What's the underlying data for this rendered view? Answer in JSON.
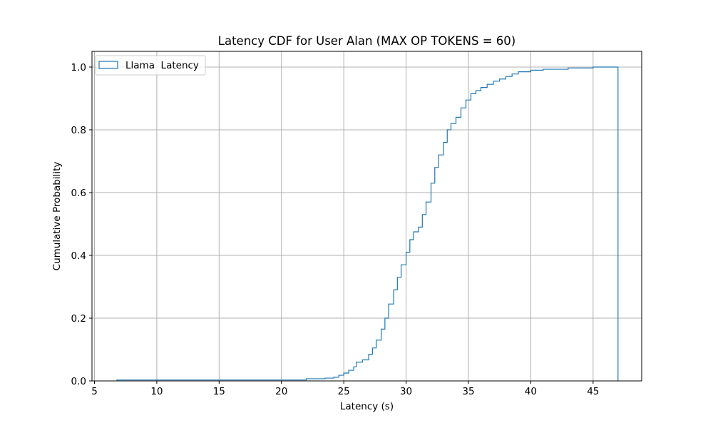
{
  "chart_data": {
    "type": "line",
    "title": "Latency CDF for User Alan (MAX OP TOKENS = 60)",
    "xlabel": "Latency (s)",
    "ylabel": "Cumulative Probability",
    "xlim": [
      4.8,
      48.9
    ],
    "ylim": [
      0.0,
      1.05
    ],
    "xticks": [
      5,
      10,
      15,
      20,
      25,
      30,
      35,
      40,
      45
    ],
    "yticks": [
      0.0,
      0.2,
      0.4,
      0.6,
      0.8,
      1.0
    ],
    "grid": true,
    "legend_position": "upper-left",
    "histtype": "step",
    "color": "#1f77b4",
    "series": [
      {
        "name": "Llama  Latency",
        "x": [
          6.8,
          22.0,
          23.5,
          24.2,
          24.6,
          25.0,
          25.4,
          25.8,
          26.0,
          26.5,
          27.0,
          27.3,
          27.6,
          28.0,
          28.3,
          28.6,
          29.0,
          29.3,
          29.6,
          30.0,
          30.3,
          30.6,
          31.0,
          31.3,
          31.6,
          32.0,
          32.3,
          32.6,
          33.0,
          33.3,
          33.6,
          34.0,
          34.4,
          34.8,
          35.2,
          35.6,
          36.0,
          36.5,
          37.0,
          37.5,
          38.0,
          38.5,
          39.0,
          40.0,
          41.0,
          43.0,
          45.0,
          47.0
        ],
        "y": [
          0.003,
          0.007,
          0.009,
          0.012,
          0.018,
          0.025,
          0.034,
          0.045,
          0.06,
          0.067,
          0.085,
          0.105,
          0.13,
          0.165,
          0.2,
          0.245,
          0.29,
          0.33,
          0.37,
          0.41,
          0.45,
          0.475,
          0.49,
          0.53,
          0.57,
          0.63,
          0.68,
          0.72,
          0.76,
          0.8,
          0.82,
          0.84,
          0.87,
          0.895,
          0.915,
          0.925,
          0.935,
          0.945,
          0.955,
          0.962,
          0.97,
          0.978,
          0.985,
          0.99,
          0.993,
          0.997,
          1.0,
          1.0
        ]
      }
    ]
  }
}
